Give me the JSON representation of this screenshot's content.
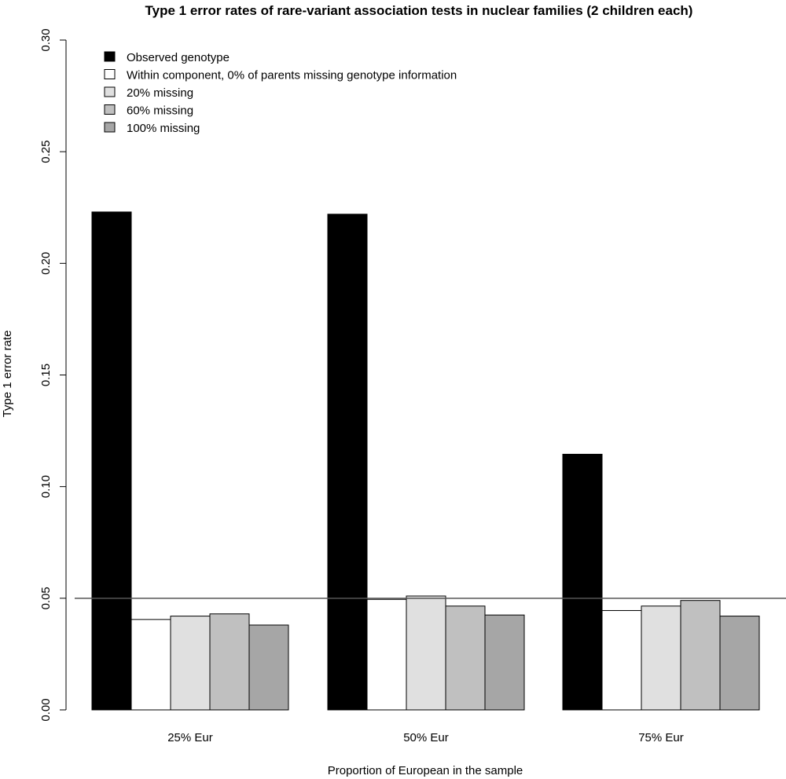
{
  "chart_data": {
    "type": "bar",
    "title": "Type 1 error rates of rare-variant association tests in nuclear families (2 children each)",
    "xlabel": "Proportion of European in the sample",
    "ylabel": "Type 1 error rate",
    "categories": [
      "25% Eur",
      "50% Eur",
      "75% Eur"
    ],
    "ylim": [
      0,
      0.3
    ],
    "yticks": [
      "0.00",
      "0.05",
      "0.10",
      "0.15",
      "0.20",
      "0.25",
      "0.30"
    ],
    "reference_line": 0.05,
    "legend_position": "top-left",
    "grid": false,
    "series": [
      {
        "name": "Observed genotype",
        "color": "#000000",
        "values": [
          0.223,
          0.222,
          0.1145
        ]
      },
      {
        "name": "Within component, 0% of parents missing genotype information",
        "color": "#ffffff",
        "values": [
          0.0405,
          0.0495,
          0.0445
        ]
      },
      {
        "name": "20% missing",
        "color": "#e0e0e0",
        "values": [
          0.042,
          0.051,
          0.0465
        ]
      },
      {
        "name": "60% missing",
        "color": "#c0c0c0",
        "values": [
          0.043,
          0.0465,
          0.049
        ]
      },
      {
        "name": "100% missing",
        "color": "#a6a6a6",
        "values": [
          0.038,
          0.0425,
          0.042
        ]
      }
    ]
  }
}
